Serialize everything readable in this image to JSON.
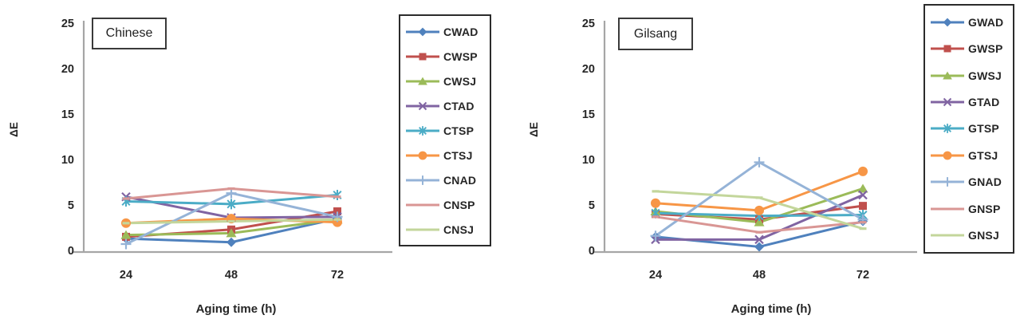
{
  "figure": {
    "background": "#ffffff"
  },
  "chart_data": [
    {
      "type": "line",
      "title": "Chinese",
      "ylabel": "ΔE",
      "xlabel": "Aging time (h)",
      "ylim": [
        0,
        25
      ],
      "yticks": [
        0,
        5,
        10,
        15,
        20,
        25
      ],
      "categories": [
        "24",
        "48",
        "72"
      ],
      "grid": false,
      "legend_position": "right",
      "series": [
        {
          "name": "CWAD",
          "color": "#4F81BD",
          "marker": "diamond",
          "values": [
            1.3,
            0.9,
            3.5
          ]
        },
        {
          "name": "CWSP",
          "color": "#C0504D",
          "marker": "square",
          "values": [
            1.5,
            2.3,
            4.3
          ]
        },
        {
          "name": "CWSJ",
          "color": "#9BBB59",
          "marker": "triangle",
          "values": [
            1.7,
            1.9,
            3.4
          ]
        },
        {
          "name": "CTAD",
          "color": "#8064A2",
          "marker": "x",
          "values": [
            5.9,
            3.6,
            3.7
          ]
        },
        {
          "name": "CTSP",
          "color": "#4BACC6",
          "marker": "asterisk",
          "values": [
            5.4,
            5.1,
            6.1
          ]
        },
        {
          "name": "CTSJ",
          "color": "#F79646",
          "marker": "circle",
          "values": [
            3.0,
            3.5,
            3.1
          ]
        },
        {
          "name": "CNAD",
          "color": "#95B3D7",
          "marker": "plus",
          "values": [
            0.7,
            6.3,
            3.7
          ]
        },
        {
          "name": "CNSP",
          "color": "#D99694",
          "marker": "dash",
          "values": [
            5.7,
            6.8,
            5.9
          ]
        },
        {
          "name": "CNSJ",
          "color": "#C3D69B",
          "marker": "dash",
          "values": [
            3.0,
            3.2,
            3.4
          ]
        }
      ]
    },
    {
      "type": "line",
      "title": "Gilsang",
      "ylabel": "ΔE",
      "xlabel": "Aging time (h)",
      "ylim": [
        0,
        25
      ],
      "yticks": [
        0,
        5,
        10,
        15,
        20,
        25
      ],
      "categories": [
        "24",
        "48",
        "72"
      ],
      "grid": false,
      "legend_position": "right",
      "series": [
        {
          "name": "GWAD",
          "color": "#4F81BD",
          "marker": "diamond",
          "values": [
            1.5,
            0.4,
            3.2
          ]
        },
        {
          "name": "GWSP",
          "color": "#C0504D",
          "marker": "square",
          "values": [
            4.0,
            3.4,
            4.9
          ]
        },
        {
          "name": "GWSJ",
          "color": "#9BBB59",
          "marker": "triangle",
          "values": [
            4.3,
            3.1,
            6.8
          ]
        },
        {
          "name": "GTAD",
          "color": "#8064A2",
          "marker": "x",
          "values": [
            1.2,
            1.2,
            6.1
          ]
        },
        {
          "name": "GTSP",
          "color": "#4BACC6",
          "marker": "asterisk",
          "values": [
            4.1,
            3.8,
            3.9
          ]
        },
        {
          "name": "GTSJ",
          "color": "#F79646",
          "marker": "circle",
          "values": [
            5.2,
            4.4,
            8.7
          ]
        },
        {
          "name": "GNAD",
          "color": "#95B3D7",
          "marker": "plus",
          "values": [
            1.6,
            9.7,
            3.4
          ]
        },
        {
          "name": "GNSP",
          "color": "#D99694",
          "marker": "dash",
          "values": [
            3.7,
            2.0,
            3.1
          ]
        },
        {
          "name": "GNSJ",
          "color": "#C3D69B",
          "marker": "dash",
          "values": [
            6.5,
            5.8,
            2.4
          ]
        }
      ]
    }
  ]
}
